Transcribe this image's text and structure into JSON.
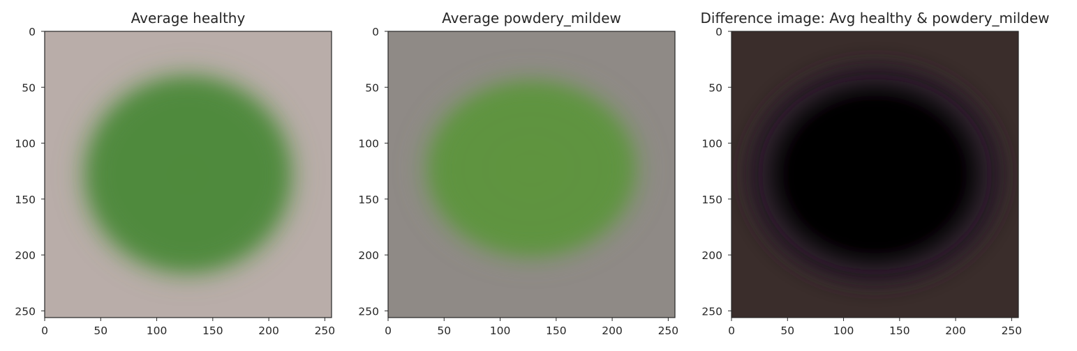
{
  "chart_data": [
    {
      "type": "image",
      "title": "Average healthy",
      "xlim": [
        0,
        256
      ],
      "ylim": [
        256,
        0
      ],
      "xticks": [
        "0",
        "50",
        "100",
        "150",
        "200",
        "250"
      ],
      "yticks": [
        "0",
        "50",
        "100",
        "150",
        "200",
        "250"
      ],
      "grid": false,
      "colors": {
        "background": "#b9ada9",
        "center": "#4f8a3c",
        "mid": "#6a9a55"
      }
    },
    {
      "type": "image",
      "title": "Average powdery_mildew",
      "xlim": [
        0,
        256
      ],
      "ylim": [
        256,
        0
      ],
      "xticks": [
        "0",
        "50",
        "100",
        "150",
        "200",
        "250"
      ],
      "yticks": [
        "0",
        "50",
        "100",
        "150",
        "200",
        "250"
      ],
      "grid": false,
      "colors": {
        "background": "#8f8a86",
        "center": "#5f943f",
        "mid": "#7f9a6a"
      }
    },
    {
      "type": "image",
      "title": "Difference image: Avg healthy & powdery_mildew",
      "xlim": [
        0,
        256
      ],
      "ylim": [
        256,
        0
      ],
      "xticks": [
        "0",
        "50",
        "100",
        "150",
        "200",
        "250"
      ],
      "yticks": [
        "0",
        "50",
        "100",
        "150",
        "200",
        "250"
      ],
      "grid": false,
      "colors": {
        "background": "#3a2d2b",
        "center": "#050304",
        "mid": "#2b1f2c"
      }
    }
  ]
}
